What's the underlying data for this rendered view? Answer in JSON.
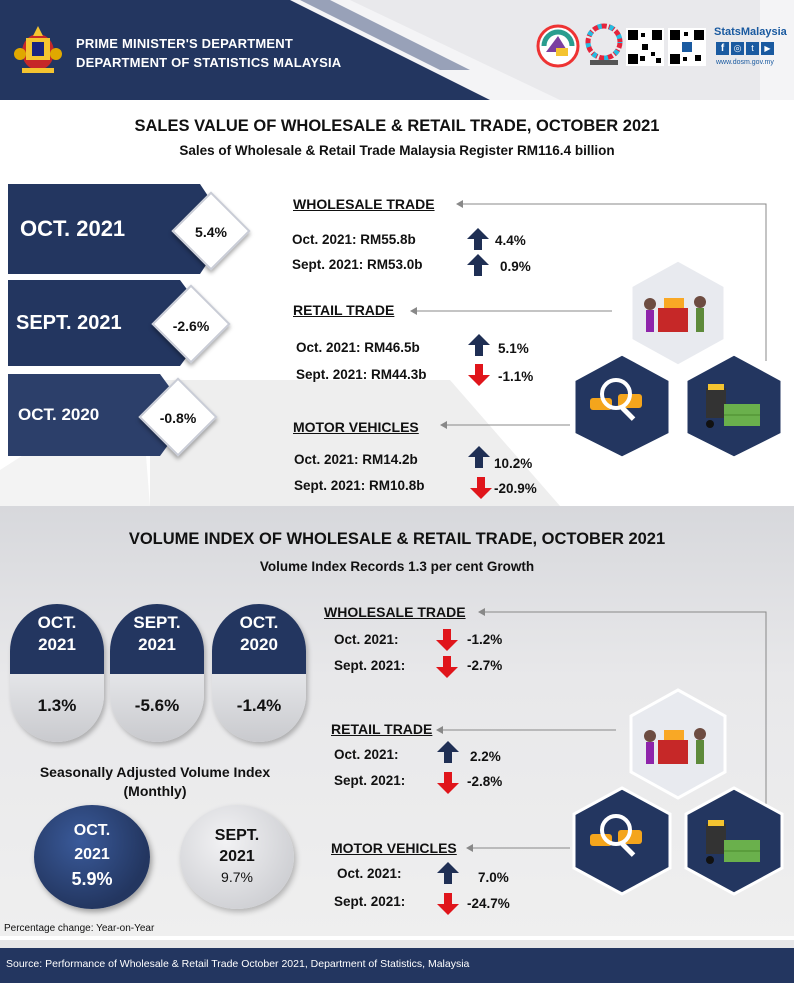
{
  "header": {
    "dept_line1": "PRIME MINISTER'S DEPARTMENT",
    "dept_line2": "DEPARTMENT OF STATISTICS MALAYSIA",
    "brand": "StatsMalaysia",
    "website": "www.dosm.gov.my",
    "colors": {
      "navy": "#233660",
      "up": "#1f2f54",
      "down": "#e0151b"
    }
  },
  "section1": {
    "title": "SALES VALUE OF WHOLESALE & RETAIL TRADE, OCTOBER 2021",
    "subtitle": "Sales of Wholesale & Retail Trade Malaysia Register RM116.4 billion",
    "periods": [
      {
        "label": "OCT. 2021",
        "change": "5.4%"
      },
      {
        "label": "SEPT. 2021",
        "change": "-2.6%"
      },
      {
        "label": "OCT. 2020",
        "change": "-0.8%"
      }
    ],
    "categories": [
      {
        "title": "WHOLESALE TRADE",
        "rows": [
          {
            "label": "Oct. 2021: RM55.8b",
            "change": "4.4%",
            "dir": "up"
          },
          {
            "label": "Sept. 2021: RM53.0b",
            "change": "0.9%",
            "dir": "up"
          }
        ]
      },
      {
        "title": "RETAIL TRADE",
        "rows": [
          {
            "label": "Oct. 2021: RM46.5b",
            "change": "5.1%",
            "dir": "up"
          },
          {
            "label": "Sept. 2021: RM44.3b",
            "change": "-1.1%",
            "dir": "down"
          }
        ]
      },
      {
        "title": "MOTOR VEHICLES",
        "rows": [
          {
            "label": "Oct. 2021: RM14.2b",
            "change": "10.2%",
            "dir": "up"
          },
          {
            "label": "Sept. 2021: RM10.8b",
            "change": "-20.9%",
            "dir": "down"
          }
        ]
      }
    ]
  },
  "section2": {
    "title": "VOLUME INDEX OF WHOLESALE & RETAIL TRADE, OCTOBER 2021",
    "subtitle": "Volume Index Records 1.3 per cent Growth",
    "pills": [
      {
        "line1": "OCT.",
        "line2": "2021",
        "value": "1.3%"
      },
      {
        "line1": "SEPT.",
        "line2": "2021",
        "value": "-5.6%"
      },
      {
        "line1": "OCT.",
        "line2": "2020",
        "value": "-1.4%"
      }
    ],
    "sa_label": "Seasonally Adjusted Volume Index (Monthly)",
    "sa_circles": [
      {
        "line1": "OCT.",
        "line2": "2021",
        "value": "5.9%"
      },
      {
        "line1": "SEPT.",
        "line2": "2021",
        "value": "9.7%"
      }
    ],
    "categories": [
      {
        "title": "WHOLESALE TRADE",
        "rows": [
          {
            "label": "Oct. 2021:",
            "change": "-1.2%",
            "dir": "down"
          },
          {
            "label": "Sept. 2021:",
            "change": "-2.7%",
            "dir": "down"
          }
        ]
      },
      {
        "title": "RETAIL TRADE",
        "rows": [
          {
            "label": "Oct. 2021:",
            "change": "2.2%",
            "dir": "up"
          },
          {
            "label": "Sept. 2021:",
            "change": "-2.8%",
            "dir": "down"
          }
        ]
      },
      {
        "title": "MOTOR VEHICLES",
        "rows": [
          {
            "label": "Oct. 2021:",
            "change": "7.0%",
            "dir": "up"
          },
          {
            "label": "Sept. 2021:",
            "change": "-24.7%",
            "dir": "down"
          }
        ]
      }
    ],
    "note": "Percentage change: Year-on-Year"
  },
  "footer": {
    "source": "Source: Performance of Wholesale & Retail Trade October 2021, Department of Statistics, Malaysia"
  }
}
